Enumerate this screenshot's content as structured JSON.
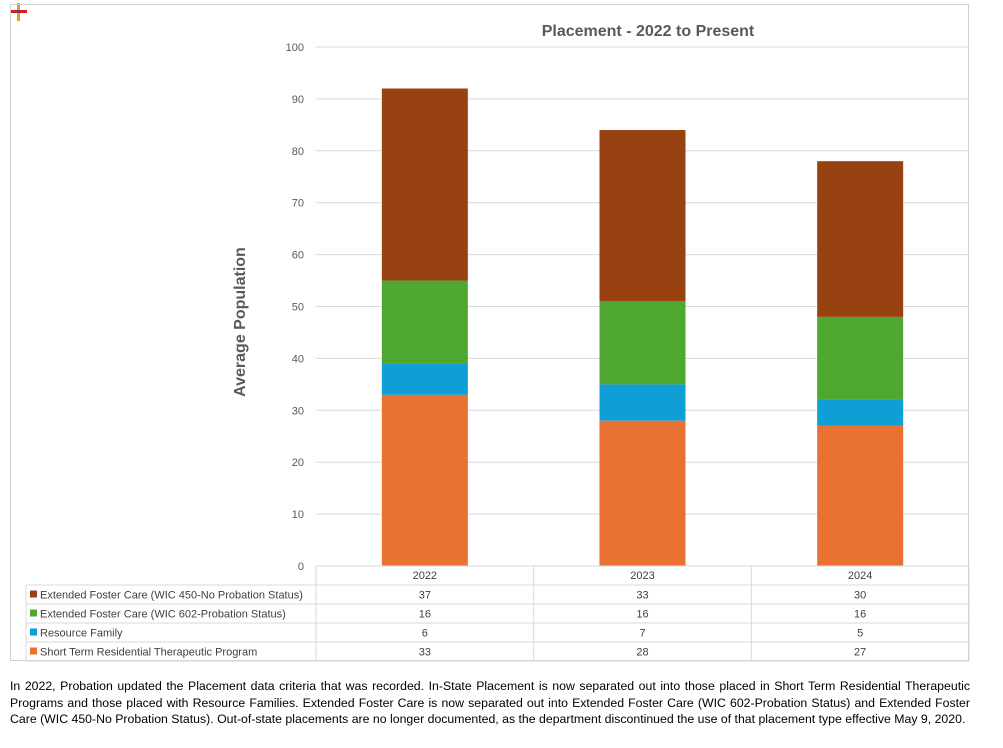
{
  "chart_data": {
    "type": "bar",
    "stacked": true,
    "title": "Placement - 2022 to Present",
    "ylabel": "Average Population",
    "xlabel": "",
    "ylim": [
      0,
      100
    ],
    "yticks": [
      "0",
      "10",
      "20",
      "30",
      "40",
      "50",
      "60",
      "70",
      "80",
      "90",
      "100"
    ],
    "grid": true,
    "legend": "data-table-below",
    "categories": [
      "2022",
      "2023",
      "2024"
    ],
    "series": [
      {
        "name": "Short Term Residential Therapeutic Program",
        "color": "#e97132",
        "values": [
          33,
          28,
          27
        ]
      },
      {
        "name": "Resource Family",
        "color": "#0f9ed5",
        "values": [
          6,
          7,
          5
        ]
      },
      {
        "name": "Extended Foster Care (WIC 602-Probation Status)",
        "color": "#4ea72e",
        "values": [
          16,
          16,
          16
        ]
      },
      {
        "name": "Extended Foster Care (WIC 450-No Probation Status)",
        "color": "#974210",
        "values": [
          37,
          33,
          30
        ]
      }
    ],
    "table_row_order": [
      3,
      2,
      1,
      0
    ]
  },
  "caption": "In 2022, Probation updated the Placement data criteria that was recorded. In-State Placement is now separated out into those placed in Short Term Residential Therapeutic Programs and those placed with Resource Families. Extended Foster Care is now separated out into Extended Foster Care (WIC 602-Probation Status) and Extended Foster Care (WIC 450-No Probation Status). Out-of-state placements are no longer documented, as the department discontinued the use of that placement type effective May 9, 2020."
}
